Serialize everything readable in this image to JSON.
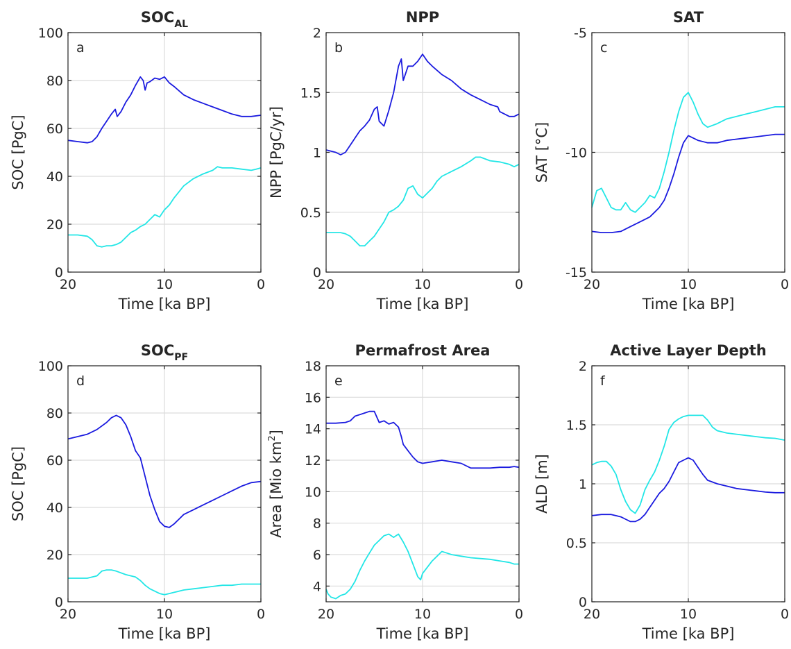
{
  "chart_data": [
    {
      "id": "a",
      "type": "line",
      "title": "SOC",
      "title_sub": "AL",
      "letter": "a",
      "ylabel": "SOC [PgC]",
      "xlabel": "Time  [ka BP]",
      "xlim": [
        20,
        0
      ],
      "ylim": [
        0,
        100
      ],
      "xticks": [
        20,
        10,
        0
      ],
      "yticks": [
        0,
        20,
        40,
        60,
        80,
        100
      ],
      "ytick_labels": [
        "0",
        "20",
        "40",
        "60",
        "80",
        "100"
      ],
      "grid": true,
      "series": [
        {
          "color": "#1a1adf",
          "x": [
            20,
            19,
            18,
            17.5,
            17,
            16.5,
            16,
            15.5,
            15.1,
            14.9,
            14.5,
            14,
            13.5,
            13,
            12.5,
            12.2,
            12,
            11.8,
            11.5,
            11,
            10.5,
            10,
            9.5,
            9,
            8,
            7,
            6,
            5,
            4,
            3,
            2,
            1,
            0
          ],
          "y": [
            55,
            54.5,
            54,
            54.5,
            56.5,
            60,
            63,
            66,
            68,
            65,
            67,
            71,
            74,
            78,
            81.5,
            80,
            76,
            79,
            79.5,
            81,
            80.5,
            81.5,
            79,
            77.5,
            74,
            72,
            70.5,
            69,
            67.5,
            66,
            65,
            65,
            65.5
          ]
        },
        {
          "color": "#22e6e6",
          "x": [
            20,
            19,
            18,
            17.5,
            17,
            16.5,
            16,
            15.5,
            15,
            14.5,
            14,
            13.5,
            13,
            12.5,
            12,
            11.5,
            11,
            10.5,
            10,
            9.5,
            9,
            8.5,
            8,
            7,
            6,
            5,
            4.5,
            4,
            3,
            2,
            1,
            0.5,
            0
          ],
          "y": [
            15.5,
            15.5,
            15,
            13.5,
            11,
            10.5,
            11,
            11,
            11.5,
            12.5,
            14.5,
            16.5,
            17.5,
            19,
            20,
            22,
            24,
            23,
            26,
            28,
            31,
            33.5,
            36,
            39,
            41,
            42.5,
            44,
            43.5,
            43.5,
            43,
            42.5,
            43,
            43.5
          ]
        }
      ]
    },
    {
      "id": "b",
      "type": "line",
      "title": "NPP",
      "letter": "b",
      "ylabel": "NPP [PgC/yr]",
      "xlabel": "Time  [ka BP]",
      "xlim": [
        20,
        0
      ],
      "ylim": [
        0,
        2
      ],
      "xticks": [
        20,
        10,
        0
      ],
      "yticks": [
        0,
        0.5,
        1,
        1.5,
        2
      ],
      "ytick_labels": [
        "0",
        "0.5",
        "1",
        "1.5",
        "2"
      ],
      "grid": true,
      "series": [
        {
          "color": "#1a1adf",
          "x": [
            20,
            19,
            18.5,
            18,
            17.5,
            17,
            16.5,
            16,
            15.5,
            15,
            14.7,
            14.5,
            14,
            13.5,
            13,
            12.5,
            12.2,
            12,
            11.5,
            11,
            10.5,
            10,
            9.5,
            9,
            8,
            7,
            6,
            5,
            4,
            3,
            2.2,
            2,
            1.5,
            1,
            0.5,
            0
          ],
          "y": [
            1.02,
            1.0,
            0.98,
            1.0,
            1.06,
            1.12,
            1.18,
            1.22,
            1.27,
            1.36,
            1.38,
            1.26,
            1.22,
            1.35,
            1.5,
            1.72,
            1.78,
            1.6,
            1.72,
            1.72,
            1.76,
            1.82,
            1.76,
            1.72,
            1.65,
            1.6,
            1.53,
            1.48,
            1.44,
            1.4,
            1.38,
            1.34,
            1.32,
            1.3,
            1.3,
            1.32
          ]
        },
        {
          "color": "#22e6e6",
          "x": [
            20,
            19,
            18.5,
            18,
            17.5,
            17,
            16.5,
            16,
            15.5,
            15,
            14.5,
            14,
            13.5,
            13,
            12.5,
            12,
            11.5,
            11,
            10.5,
            10,
            9.5,
            9,
            8.5,
            8,
            7,
            6,
            5,
            4.5,
            4,
            3,
            2,
            1,
            0.5,
            0
          ],
          "y": [
            0.33,
            0.33,
            0.33,
            0.32,
            0.3,
            0.26,
            0.22,
            0.22,
            0.26,
            0.3,
            0.36,
            0.42,
            0.5,
            0.52,
            0.55,
            0.6,
            0.7,
            0.72,
            0.65,
            0.62,
            0.66,
            0.7,
            0.76,
            0.8,
            0.84,
            0.88,
            0.93,
            0.96,
            0.96,
            0.93,
            0.92,
            0.9,
            0.88,
            0.9
          ]
        }
      ]
    },
    {
      "id": "c",
      "type": "line",
      "title": "SAT",
      "letter": "c",
      "ylabel": "SAT  [°C]",
      "xlabel": "Time  [ka BP]",
      "xlim": [
        20,
        0
      ],
      "ylim": [
        -15,
        -5
      ],
      "xticks": [
        20,
        10,
        0
      ],
      "yticks": [
        -15,
        -10,
        -5
      ],
      "ytick_labels": [
        "-15",
        "-10",
        "-5"
      ],
      "grid": true,
      "series": [
        {
          "color": "#1a1adf",
          "x": [
            20,
            19,
            18,
            17,
            16,
            15,
            14.5,
            14,
            13.5,
            13,
            12.5,
            12,
            11.5,
            11,
            10.5,
            10,
            9,
            8,
            7,
            6,
            5,
            4,
            3,
            2,
            1,
            0
          ],
          "y": [
            -13.3,
            -13.35,
            -13.35,
            -13.3,
            -13.1,
            -12.9,
            -12.8,
            -12.7,
            -12.5,
            -12.3,
            -12,
            -11.5,
            -10.9,
            -10.2,
            -9.6,
            -9.3,
            -9.5,
            -9.6,
            -9.6,
            -9.5,
            -9.45,
            -9.4,
            -9.35,
            -9.3,
            -9.25,
            -9.25
          ]
        },
        {
          "color": "#22e6e6",
          "x": [
            20,
            19.5,
            19,
            18.5,
            18,
            17.5,
            17,
            16.5,
            16,
            15.5,
            15,
            14.5,
            14,
            13.5,
            13,
            12.5,
            12,
            11.5,
            11,
            10.5,
            10,
            9.5,
            9,
            8.5,
            8,
            7,
            6,
            5,
            4,
            3,
            2,
            1,
            0
          ],
          "y": [
            -12.3,
            -11.6,
            -11.5,
            -11.9,
            -12.3,
            -12.4,
            -12.4,
            -12.1,
            -12.4,
            -12.5,
            -12.3,
            -12.1,
            -11.8,
            -11.9,
            -11.5,
            -10.8,
            -10,
            -9.1,
            -8.3,
            -7.7,
            -7.5,
            -7.9,
            -8.4,
            -8.8,
            -8.95,
            -8.8,
            -8.6,
            -8.5,
            -8.4,
            -8.3,
            -8.2,
            -8.1,
            -8.1
          ]
        }
      ]
    },
    {
      "id": "d",
      "type": "line",
      "title": "SOC",
      "title_sub": "PF",
      "letter": "d",
      "ylabel": "SOC [PgC]",
      "xlabel": "Time  [ka BP]",
      "xlim": [
        20,
        0
      ],
      "ylim": [
        0,
        100
      ],
      "xticks": [
        20,
        10,
        0
      ],
      "yticks": [
        0,
        20,
        40,
        60,
        80,
        100
      ],
      "ytick_labels": [
        "0",
        "20",
        "40",
        "60",
        "80",
        "100"
      ],
      "grid": true,
      "series": [
        {
          "color": "#1a1adf",
          "x": [
            20,
            19,
            18,
            17,
            16,
            15.5,
            15,
            14.5,
            14,
            13.5,
            13,
            12.5,
            12,
            11.5,
            11,
            10.5,
            10,
            9.5,
            9,
            8.5,
            8,
            7,
            6,
            5,
            4,
            3,
            2,
            1,
            0
          ],
          "y": [
            69,
            70,
            71,
            73,
            76,
            78,
            79,
            78,
            75,
            70,
            64,
            61,
            53,
            45,
            39,
            34,
            32,
            31.5,
            33,
            35,
            37,
            39,
            41,
            43,
            45,
            47,
            49,
            50.5,
            51
          ]
        },
        {
          "color": "#22e6e6",
          "x": [
            20,
            19,
            18,
            17,
            16.5,
            16,
            15.5,
            15,
            14,
            13,
            12.5,
            12,
            11.5,
            11,
            10.5,
            10,
            9.5,
            9,
            8,
            7,
            6,
            5,
            4,
            3,
            2,
            1,
            0
          ],
          "y": [
            10,
            10,
            10,
            11,
            13,
            13.5,
            13.5,
            13,
            11.5,
            10.5,
            9,
            7,
            5.5,
            4.5,
            3.5,
            3,
            3.5,
            4,
            5,
            5.5,
            6,
            6.5,
            7,
            7,
            7.5,
            7.5,
            7.5
          ]
        }
      ]
    },
    {
      "id": "e",
      "type": "line",
      "title": "Permafrost Area",
      "letter": "e",
      "ylabel": "Area  [Mio km",
      "ylabel_sup": "2",
      "ylabel_end": "]",
      "xlabel": "Time  [ka BP]",
      "xlim": [
        20,
        0
      ],
      "ylim": [
        3,
        18
      ],
      "xticks": [
        20,
        10,
        0
      ],
      "yticks": [
        4,
        6,
        8,
        10,
        12,
        14,
        16,
        18
      ],
      "ytick_labels": [
        "4",
        "6",
        "8",
        "10",
        "12",
        "14",
        "16",
        "18"
      ],
      "grid": true,
      "series": [
        {
          "color": "#1a1adf",
          "x": [
            20,
            19,
            18,
            17.5,
            17,
            16.5,
            16,
            15.5,
            15,
            14.5,
            14,
            13.5,
            13,
            12.5,
            12.2,
            12,
            11.5,
            11,
            10.5,
            10,
            9.5,
            9,
            8,
            7,
            6,
            5,
            4,
            3,
            2,
            1,
            0.5,
            0
          ],
          "y": [
            14.35,
            14.35,
            14.4,
            14.5,
            14.8,
            14.9,
            15,
            15.1,
            15.1,
            14.4,
            14.5,
            14.3,
            14.4,
            14.1,
            13.5,
            13,
            12.6,
            12.2,
            11.9,
            11.8,
            11.85,
            11.9,
            12,
            11.9,
            11.8,
            11.5,
            11.5,
            11.5,
            11.55,
            11.55,
            11.6,
            11.55
          ]
        },
        {
          "color": "#22e6e6",
          "x": [
            20,
            19.8,
            19.5,
            19,
            18.5,
            18,
            17.5,
            17,
            16.5,
            16,
            15.5,
            15,
            14.5,
            14,
            13.5,
            13,
            12.5,
            12,
            11.5,
            11,
            10.5,
            10.2,
            10,
            9.5,
            9,
            8.5,
            8,
            7.5,
            7,
            6,
            5,
            4,
            3,
            2,
            1,
            0.5,
            0
          ],
          "y": [
            3.8,
            3.5,
            3.3,
            3.2,
            3.4,
            3.5,
            3.8,
            4.3,
            5,
            5.6,
            6.1,
            6.6,
            6.9,
            7.2,
            7.3,
            7.1,
            7.3,
            6.8,
            6.2,
            5.4,
            4.6,
            4.4,
            4.8,
            5.2,
            5.6,
            5.9,
            6.2,
            6.1,
            6,
            5.9,
            5.8,
            5.75,
            5.7,
            5.6,
            5.5,
            5.4,
            5.4
          ]
        }
      ]
    },
    {
      "id": "f",
      "type": "line",
      "title": "Active Layer Depth",
      "letter": "f",
      "ylabel": "ALD  [m]",
      "xlabel": "Time  [ka BP]",
      "xlim": [
        20,
        0
      ],
      "ylim": [
        0,
        2
      ],
      "xticks": [
        20,
        10,
        0
      ],
      "yticks": [
        0,
        0.5,
        1,
        1.5,
        2
      ],
      "ytick_labels": [
        "0",
        "0.5",
        "1",
        "1.5",
        "2"
      ],
      "grid": true,
      "series": [
        {
          "color": "#1a1adf",
          "x": [
            20,
            19,
            18,
            17,
            16.5,
            16,
            15.5,
            15,
            14.5,
            14,
            13.5,
            13,
            12.5,
            12,
            11.5,
            11,
            10.5,
            10,
            9.5,
            9,
            8.5,
            8,
            7,
            6,
            5,
            4,
            3,
            2,
            1,
            0
          ],
          "y": [
            0.73,
            0.74,
            0.74,
            0.72,
            0.7,
            0.68,
            0.68,
            0.7,
            0.74,
            0.8,
            0.86,
            0.92,
            0.96,
            1.02,
            1.1,
            1.18,
            1.2,
            1.22,
            1.2,
            1.14,
            1.08,
            1.03,
            1.0,
            0.98,
            0.96,
            0.95,
            0.94,
            0.93,
            0.925,
            0.925
          ]
        },
        {
          "color": "#22e6e6",
          "x": [
            20,
            19.5,
            19,
            18.5,
            18,
            17.5,
            17,
            16.5,
            16,
            15.5,
            15,
            14.5,
            14,
            13.5,
            13,
            12.5,
            12,
            11.5,
            11,
            10.5,
            10,
            9.5,
            9,
            8.5,
            8,
            7.5,
            7,
            6,
            5,
            4,
            3,
            2,
            1,
            0
          ],
          "y": [
            1.16,
            1.18,
            1.19,
            1.19,
            1.15,
            1.08,
            0.95,
            0.85,
            0.78,
            0.75,
            0.82,
            0.95,
            1.03,
            1.1,
            1.2,
            1.32,
            1.46,
            1.52,
            1.55,
            1.57,
            1.58,
            1.58,
            1.58,
            1.58,
            1.54,
            1.48,
            1.45,
            1.43,
            1.42,
            1.41,
            1.4,
            1.39,
            1.385,
            1.37
          ]
        }
      ]
    }
  ]
}
